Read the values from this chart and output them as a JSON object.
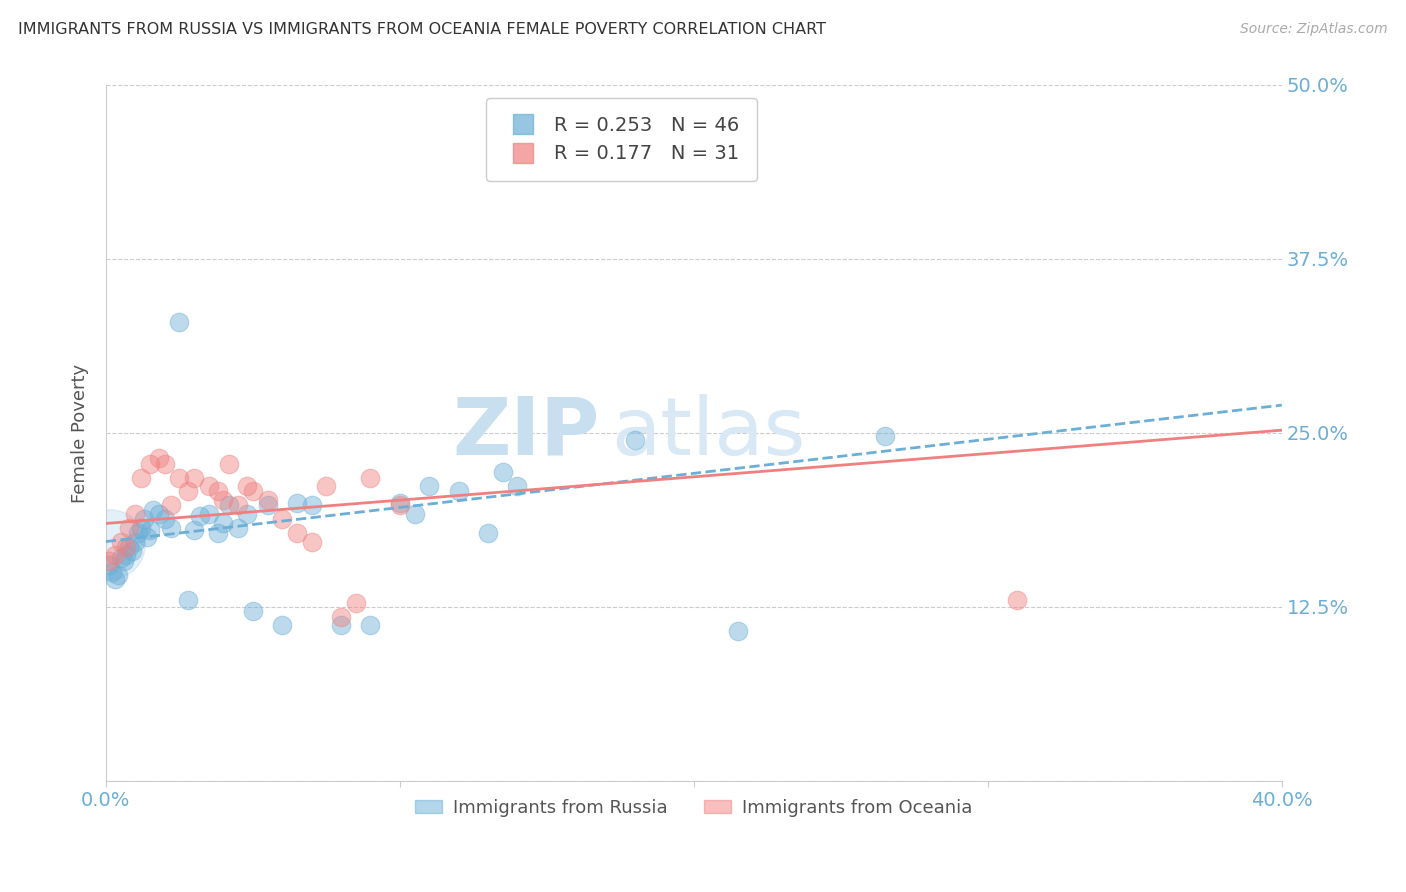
{
  "title": "IMMIGRANTS FROM RUSSIA VS IMMIGRANTS FROM OCEANIA FEMALE POVERTY CORRELATION CHART",
  "source": "Source: ZipAtlas.com",
  "ylabel": "Female Poverty",
  "yticks": [
    0.0,
    0.125,
    0.25,
    0.375,
    0.5
  ],
  "ytick_labels": [
    "",
    "12.5%",
    "25.0%",
    "37.5%",
    "50.0%"
  ],
  "xlim": [
    0.0,
    0.4
  ],
  "ylim": [
    0.0,
    0.5
  ],
  "watermark1": "ZIP",
  "watermark2": "atlas",
  "russia_R": "0.253",
  "russia_N": "46",
  "oceania_R": "0.177",
  "oceania_N": "31",
  "russia_scatter": [
    [
      0.001,
      0.155
    ],
    [
      0.002,
      0.15
    ],
    [
      0.003,
      0.145
    ],
    [
      0.004,
      0.148
    ],
    [
      0.005,
      0.16
    ],
    [
      0.006,
      0.158
    ],
    [
      0.007,
      0.162
    ],
    [
      0.008,
      0.168
    ],
    [
      0.009,
      0.165
    ],
    [
      0.01,
      0.172
    ],
    [
      0.011,
      0.178
    ],
    [
      0.012,
      0.182
    ],
    [
      0.013,
      0.188
    ],
    [
      0.014,
      0.175
    ],
    [
      0.015,
      0.18
    ],
    [
      0.016,
      0.195
    ],
    [
      0.018,
      0.192
    ],
    [
      0.02,
      0.188
    ],
    [
      0.022,
      0.182
    ],
    [
      0.025,
      0.33
    ],
    [
      0.028,
      0.13
    ],
    [
      0.03,
      0.18
    ],
    [
      0.032,
      0.19
    ],
    [
      0.035,
      0.192
    ],
    [
      0.038,
      0.178
    ],
    [
      0.04,
      0.185
    ],
    [
      0.042,
      0.198
    ],
    [
      0.045,
      0.182
    ],
    [
      0.048,
      0.192
    ],
    [
      0.05,
      0.122
    ],
    [
      0.055,
      0.198
    ],
    [
      0.06,
      0.112
    ],
    [
      0.065,
      0.2
    ],
    [
      0.07,
      0.198
    ],
    [
      0.08,
      0.112
    ],
    [
      0.09,
      0.112
    ],
    [
      0.1,
      0.2
    ],
    [
      0.105,
      0.192
    ],
    [
      0.11,
      0.212
    ],
    [
      0.12,
      0.208
    ],
    [
      0.13,
      0.178
    ],
    [
      0.135,
      0.222
    ],
    [
      0.14,
      0.212
    ],
    [
      0.18,
      0.245
    ],
    [
      0.215,
      0.108
    ],
    [
      0.265,
      0.248
    ]
  ],
  "oceania_scatter": [
    [
      0.001,
      0.158
    ],
    [
      0.003,
      0.162
    ],
    [
      0.005,
      0.172
    ],
    [
      0.007,
      0.168
    ],
    [
      0.008,
      0.182
    ],
    [
      0.01,
      0.192
    ],
    [
      0.012,
      0.218
    ],
    [
      0.015,
      0.228
    ],
    [
      0.018,
      0.232
    ],
    [
      0.02,
      0.228
    ],
    [
      0.022,
      0.198
    ],
    [
      0.025,
      0.218
    ],
    [
      0.028,
      0.208
    ],
    [
      0.03,
      0.218
    ],
    [
      0.035,
      0.212
    ],
    [
      0.038,
      0.208
    ],
    [
      0.04,
      0.202
    ],
    [
      0.042,
      0.228
    ],
    [
      0.045,
      0.198
    ],
    [
      0.048,
      0.212
    ],
    [
      0.05,
      0.208
    ],
    [
      0.055,
      0.202
    ],
    [
      0.06,
      0.188
    ],
    [
      0.065,
      0.178
    ],
    [
      0.07,
      0.172
    ],
    [
      0.075,
      0.212
    ],
    [
      0.08,
      0.118
    ],
    [
      0.085,
      0.128
    ],
    [
      0.09,
      0.218
    ],
    [
      0.1,
      0.198
    ],
    [
      0.31,
      0.13
    ]
  ],
  "russia_color": "#6baed6",
  "oceania_color": "#f08080",
  "russia_line_color": "#6baed6",
  "oceania_line_color": "#f08080",
  "russia_line_x": [
    0.0,
    0.4
  ],
  "russia_line_y": [
    0.172,
    0.27
  ],
  "oceania_line_x": [
    0.0,
    0.4
  ],
  "oceania_line_y": [
    0.185,
    0.252
  ],
  "background_color": "#ffffff",
  "grid_color": "#cccccc",
  "title_color": "#333333",
  "axis_label_color": "#6baed6",
  "watermark_color": "#ddeeff",
  "scatter_size": 180,
  "scatter_alpha": 0.45
}
